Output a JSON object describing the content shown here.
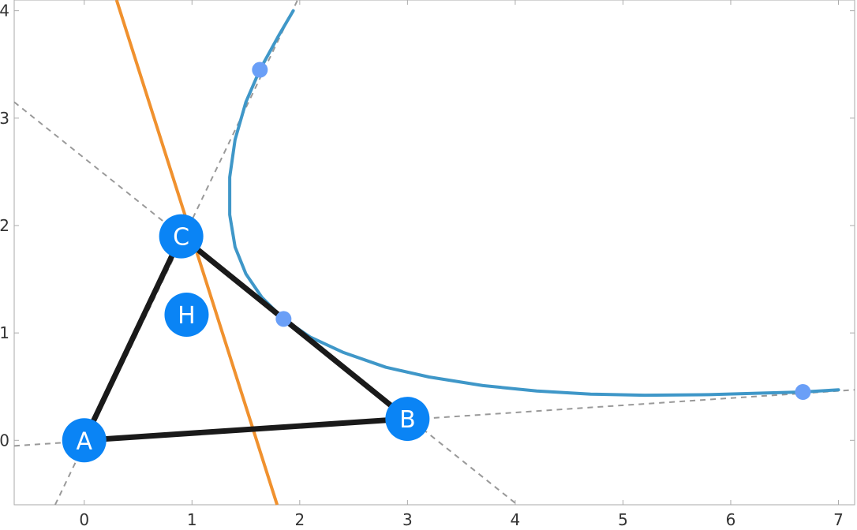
{
  "chart_data": {
    "type": "diagram",
    "xlim": [
      -0.65,
      7.15
    ],
    "ylim": [
      -0.6,
      4.1
    ],
    "x_ticks": [
      {
        "value": 0,
        "label": "0"
      },
      {
        "value": 1,
        "label": "1"
      },
      {
        "value": 2,
        "label": "2"
      },
      {
        "value": 3,
        "label": "3"
      },
      {
        "value": 4,
        "label": "4"
      },
      {
        "value": 5,
        "label": "5"
      },
      {
        "value": 6,
        "label": "6"
      },
      {
        "value": 7,
        "label": "7"
      }
    ],
    "y_ticks": [
      {
        "value": 0,
        "label": "0"
      },
      {
        "value": 1,
        "label": "1"
      },
      {
        "value": 2,
        "label": "2"
      },
      {
        "value": 3,
        "label": "3"
      },
      {
        "value": 4,
        "label": "4"
      }
    ],
    "labeled_points": [
      {
        "label": "A",
        "x": 0.0,
        "y": 0.0
      },
      {
        "label": "B",
        "x": 3.0,
        "y": 0.2
      },
      {
        "label": "C",
        "x": 0.9,
        "y": 1.9
      },
      {
        "label": "H",
        "x": 0.95,
        "y": 1.17
      }
    ],
    "contact_points": [
      {
        "x": 1.63,
        "y": 3.45
      },
      {
        "x": 1.85,
        "y": 1.13
      },
      {
        "x": 6.67,
        "y": 0.45
      }
    ],
    "triangle_vertices": [
      "A",
      "B",
      "C"
    ],
    "orange_line": {
      "x1": 0.3,
      "y1": 4.1,
      "x2": 1.79,
      "y2": -0.6
    },
    "dashed_lines": [
      {
        "x1": -0.65,
        "y1": -0.052,
        "x2": 7.15,
        "y2": 0.47
      },
      {
        "x1": -0.65,
        "y1": 3.15,
        "x2": 4.02,
        "y2": -0.6
      },
      {
        "x1": -0.27,
        "y1": -0.6,
        "x2": 1.98,
        "y2": 4.1
      }
    ],
    "curve": {
      "color": "#3f97c8",
      "points": [
        [
          1.94,
          4.0
        ],
        [
          1.8,
          3.76
        ],
        [
          1.63,
          3.45
        ],
        [
          1.5,
          3.15
        ],
        [
          1.4,
          2.8
        ],
        [
          1.35,
          2.45
        ],
        [
          1.35,
          2.1
        ],
        [
          1.4,
          1.8
        ],
        [
          1.5,
          1.55
        ],
        [
          1.65,
          1.33
        ],
        [
          1.85,
          1.13
        ],
        [
          2.1,
          0.96
        ],
        [
          2.4,
          0.82
        ],
        [
          2.8,
          0.68
        ],
        [
          3.2,
          0.59
        ],
        [
          3.7,
          0.51
        ],
        [
          4.2,
          0.46
        ],
        [
          4.7,
          0.43
        ],
        [
          5.2,
          0.42
        ],
        [
          5.8,
          0.425
        ],
        [
          6.3,
          0.44
        ],
        [
          6.67,
          0.45
        ],
        [
          7.0,
          0.47
        ]
      ]
    },
    "colors": {
      "triangle": "#1a1a1a",
      "orange_line": "#f0912e",
      "dashed": "#999999",
      "point_fill": "#0a84f5",
      "contact_fill": "#6a9ff7",
      "frame": "#aaaaaa"
    }
  }
}
